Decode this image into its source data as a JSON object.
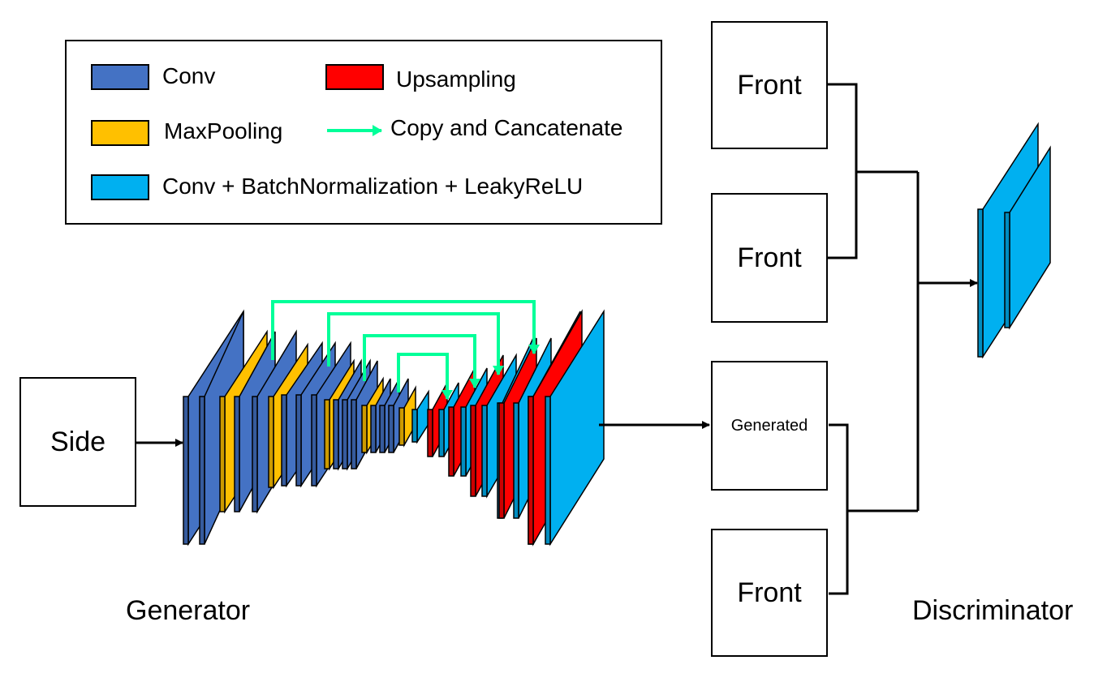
{
  "colors": {
    "conv": "#4472C4",
    "maxpool": "#FFC000",
    "upsampling": "#FF0000",
    "conv_bn_lrelu": "#00B0F0",
    "skip_arrow": "#00FF99",
    "line": "#000000"
  },
  "legend": {
    "conv": "Conv",
    "upsampling": "Upsampling",
    "maxpooling": "MaxPooling",
    "copy_concat": "Copy and Cancatenate",
    "conv_bn_lrelu": "Conv + BatchNormalization + LeakyReLU"
  },
  "nodes": {
    "side": "Side",
    "front_top": "Front",
    "front_second": "Front",
    "generated": "Generated",
    "front_bottom": "Front"
  },
  "captions": {
    "generator": "Generator",
    "discriminator": "Discriminator"
  },
  "generator_layers": [
    "conv",
    "conv",
    "maxpool",
    "conv",
    "conv",
    "maxpool",
    "conv",
    "conv",
    "conv",
    "maxpool",
    "conv",
    "conv",
    "conv",
    "maxpool",
    "conv",
    "conv",
    "conv",
    "maxpool",
    "conv_bn_lrelu",
    "upsampling",
    "conv_bn_lrelu",
    "upsampling",
    "conv_bn_lrelu",
    "upsampling",
    "conv_bn_lrelu",
    "conv_bn_lrelu",
    "upsampling",
    "conv_bn_lrelu",
    "conv_bn_lrelu",
    "upsampling",
    "conv_bn_lrelu"
  ],
  "discriminator_layers": [
    "conv_bn_lrelu",
    "conv_bn_lrelu"
  ]
}
